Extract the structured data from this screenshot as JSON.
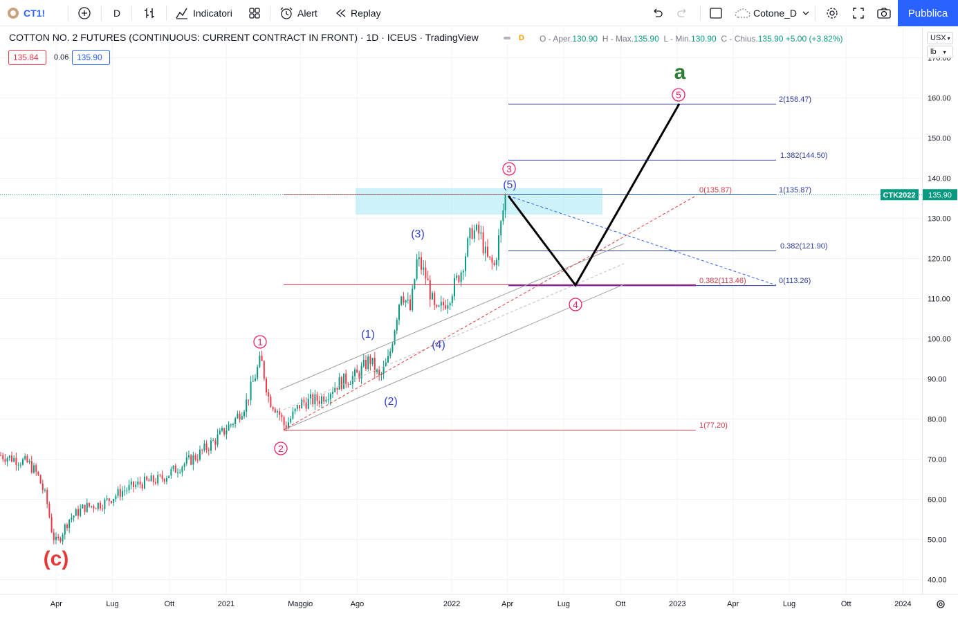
{
  "toolbar": {
    "symbol": "CT1!",
    "interval": "D",
    "indicators_label": "Indicatori",
    "alert_label": "Alert",
    "replay_label": "Replay",
    "layout_name": "Cotone_D",
    "publish_label": "Pubblica"
  },
  "legend": {
    "title": "COTTON NO. 2 FUTURES (CONTINUOUS: CURRENT CONTRACT IN FRONT) · 1D · ICEUS · TradingView",
    "badge": "D",
    "o_label": "O - Aper.",
    "o_value": "130.90",
    "h_label": "H - Max.",
    "h_value": "135.90",
    "l_label": "L - Min.",
    "l_value": "130.90",
    "c_label": "C - Chius.",
    "c_value": "135.90",
    "change": "+5.00 (+3.82%)",
    "bid": "135.84",
    "spread": "0.06",
    "ask": "135.90"
  },
  "units": {
    "currency": "USX",
    "measure": "lb"
  },
  "colors": {
    "up": "#089981",
    "down": "#f23645",
    "accent": "#2962ff",
    "wave_pink": "#e91e63",
    "wave_blue": "#2f3fd6",
    "fib_red": "#cc3b4a",
    "fib_blue": "#2c3a9c"
  },
  "chart_data": {
    "type": "candlestick",
    "y_axis": {
      "min": 40,
      "max": 170,
      "ticks": [
        "40.00",
        "50.00",
        "60.00",
        "70.00",
        "80.00",
        "90.00",
        "100.00",
        "110.00",
        "120.00",
        "130.00",
        "140.00",
        "150.00",
        "160.00",
        "170.00"
      ]
    },
    "x_ticks": [
      "Apr",
      "Lug",
      "Ott",
      "2021",
      "Maggio",
      "Ago",
      "2022",
      "Apr",
      "Lug",
      "Ott",
      "2023",
      "Apr",
      "Lug",
      "Ott",
      "2024"
    ],
    "last_price": {
      "label": "CTK2022",
      "value": "135.90"
    },
    "close_path": [
      [
        "2020-01-01",
        71
      ],
      [
        "2020-01-25",
        70
      ],
      [
        "2020-02-15",
        69
      ],
      [
        "2020-03-01",
        66
      ],
      [
        "2020-03-15",
        60
      ],
      [
        "2020-03-25",
        51
      ],
      [
        "2020-04-01",
        49
      ],
      [
        "2020-04-20",
        55
      ],
      [
        "2020-05-15",
        58
      ],
      [
        "2020-06-15",
        59
      ],
      [
        "2020-07-15",
        62
      ],
      [
        "2020-08-15",
        64
      ],
      [
        "2020-09-15",
        65
      ],
      [
        "2020-10-15",
        68
      ],
      [
        "2020-11-15",
        71
      ],
      [
        "2020-12-15",
        75
      ],
      [
        "2021-01-15",
        80
      ],
      [
        "2021-02-01",
        84
      ],
      [
        "2021-02-25",
        95
      ],
      [
        "2021-03-10",
        85
      ],
      [
        "2021-03-25",
        82
      ],
      [
        "2021-04-05",
        78
      ],
      [
        "2021-05-01",
        84
      ],
      [
        "2021-06-01",
        85
      ],
      [
        "2021-07-01",
        89
      ],
      [
        "2021-08-01",
        91
      ],
      [
        "2021-08-20",
        95
      ],
      [
        "2021-09-05",
        90
      ],
      [
        "2021-09-20",
        95
      ],
      [
        "2021-10-10",
        112
      ],
      [
        "2021-10-25",
        107
      ],
      [
        "2021-11-05",
        120
      ],
      [
        "2021-11-20",
        115
      ],
      [
        "2021-12-05",
        106
      ],
      [
        "2021-12-25",
        110
      ],
      [
        "2022-01-15",
        117
      ],
      [
        "2022-02-01",
        127
      ],
      [
        "2022-02-15",
        126
      ],
      [
        "2022-02-25",
        120
      ],
      [
        "2022-03-10",
        118
      ],
      [
        "2022-03-20",
        128
      ],
      [
        "2022-03-28",
        135.9
      ]
    ],
    "waves": [
      {
        "label": "(c)",
        "color": "red"
      },
      {
        "label": "1",
        "color": "pink"
      },
      {
        "label": "2",
        "color": "pink"
      },
      {
        "label": "3",
        "color": "pink"
      },
      {
        "label": "4",
        "color": "pink"
      },
      {
        "label": "5",
        "color": "pink"
      },
      {
        "label": "a",
        "color": "green"
      },
      {
        "label": "(1)",
        "color": "blue"
      },
      {
        "label": "(2)",
        "color": "blue"
      },
      {
        "label": "(3)",
        "color": "blue"
      },
      {
        "label": "(4)",
        "color": "blue"
      },
      {
        "label": "(5)",
        "color": "blue"
      }
    ],
    "fib_levels": [
      {
        "label": "2(158.47)",
        "price": 158.47,
        "color": "blue"
      },
      {
        "label": "1.382(144.50)",
        "price": 144.5,
        "color": "blue"
      },
      {
        "label": "1(135.87)",
        "price": 135.87,
        "color": "blue"
      },
      {
        "label": "0(135.87)",
        "price": 135.87,
        "color": "red"
      },
      {
        "label": "0.382(121.90)",
        "price": 121.9,
        "color": "blue"
      },
      {
        "label": "0.382(113.46)",
        "price": 113.46,
        "color": "red"
      },
      {
        "label": "0(113.26)",
        "price": 113.26,
        "color": "blue"
      },
      {
        "label": "1(77.20)",
        "price": 77.2,
        "color": "red"
      }
    ]
  }
}
